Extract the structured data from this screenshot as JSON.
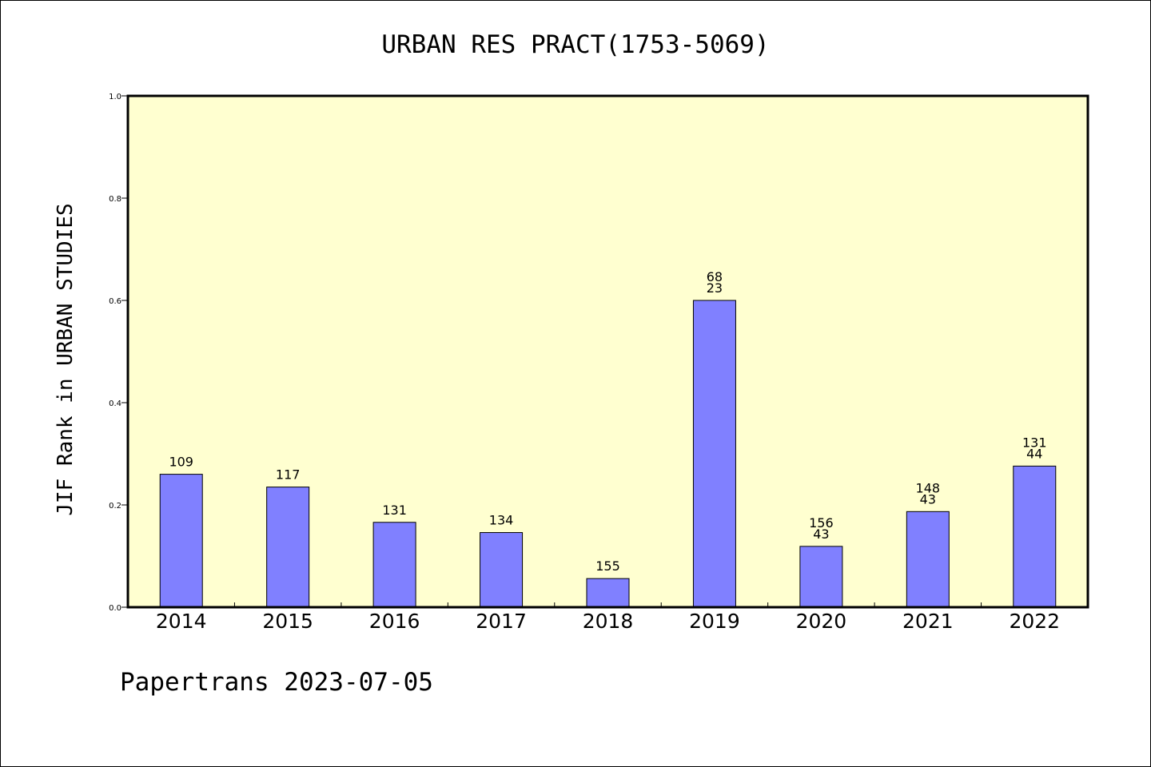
{
  "chart_data": {
    "type": "bar",
    "title": "URBAN RES PRACT(1753-5069)",
    "xlabel": "",
    "ylabel": "JIF Rank in URBAN STUDIES",
    "ylim": [
      0.0,
      1.0
    ],
    "yticks": [
      "0.0",
      "0.2",
      "0.4",
      "0.6",
      "0.8",
      "1.0"
    ],
    "grid": false,
    "background_color": "#ffffd0",
    "bar_color": "#8080ff",
    "categories": [
      "2014",
      "2015",
      "2016",
      "2017",
      "2018",
      "2019",
      "2020",
      "2021",
      "2022"
    ],
    "values": [
      0.26,
      0.235,
      0.166,
      0.146,
      0.056,
      0.6,
      0.119,
      0.187,
      0.276
    ],
    "labels": [
      [
        "109"
      ],
      [
        "117"
      ],
      [
        "131"
      ],
      [
        "134"
      ],
      [
        "155"
      ],
      [
        "68",
        "23"
      ],
      [
        "156",
        "43"
      ],
      [
        "148",
        "43"
      ],
      [
        "131",
        "44"
      ]
    ]
  },
  "footer": {
    "text": "Papertrans 2023-07-05"
  }
}
